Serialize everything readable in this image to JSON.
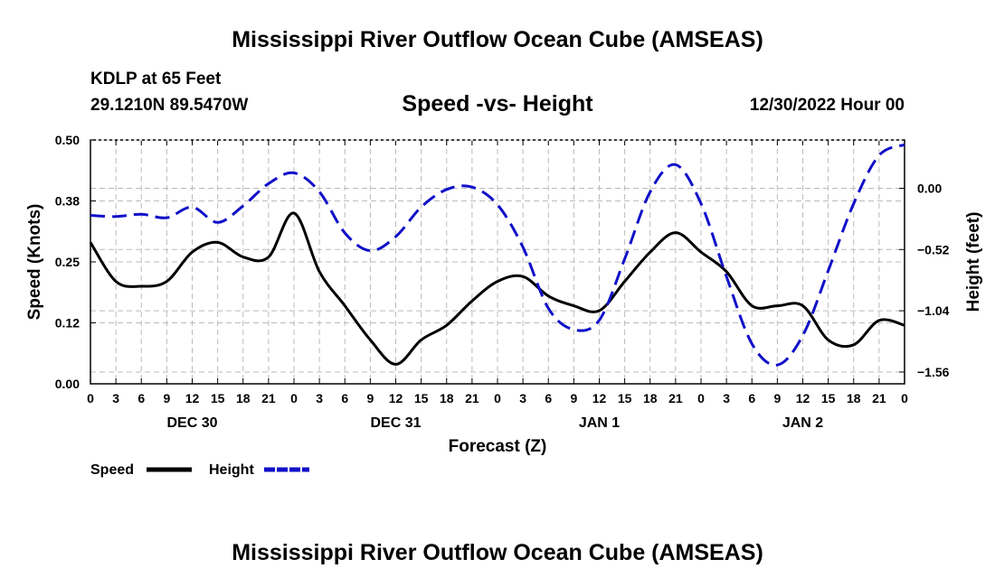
{
  "header": {
    "title": "Mississippi River Outflow Ocean Cube (AMSEAS)",
    "station": "KDLP at 65 Feet",
    "coordinates": "29.1210N  89.5470W",
    "subtitle": "Speed -vs- Height",
    "run_time": "12/30/2022 Hour 00"
  },
  "footer": {
    "title": "Mississippi River Outflow Ocean Cube (AMSEAS)"
  },
  "chart_data": {
    "type": "line",
    "title": "Speed -vs- Height",
    "xlabel": "Forecast (Z)",
    "ylabel": "Speed (Knots)",
    "y2label": "Height (feet)",
    "x_hours_range": [
      0,
      96
    ],
    "x_tick_labels": [
      "0",
      "3",
      "6",
      "9",
      "12",
      "15",
      "18",
      "21",
      "0",
      "3",
      "6",
      "9",
      "12",
      "15",
      "18",
      "21",
      "0",
      "3",
      "6",
      "9",
      "12",
      "15",
      "18",
      "21",
      "0",
      "3",
      "6",
      "9",
      "12",
      "15",
      "18",
      "21",
      "0"
    ],
    "day_labels": [
      {
        "label": "DEC 30",
        "hour": 12
      },
      {
        "label": "DEC 31",
        "hour": 36
      },
      {
        "label": "JAN 1",
        "hour": 60
      },
      {
        "label": "JAN 2",
        "hour": 84
      }
    ],
    "ylim": [
      0,
      0.5
    ],
    "y_ticks": [
      "0.00",
      "0.12",
      "0.25",
      "0.38",
      "0.50"
    ],
    "y2lim": [
      -1.66,
      0.41
    ],
    "y2_ticks": [
      "0.00",
      "−0.52",
      "−1.04",
      "−1.56"
    ],
    "y2_tick_values": [
      0.0,
      -0.52,
      -1.04,
      -1.56
    ],
    "grid": true,
    "legend_position": "bottom-left",
    "series": [
      {
        "name": "Speed",
        "axis": "left",
        "color": "#000000",
        "dash": "solid",
        "x": [
          0,
          3,
          6,
          9,
          12,
          15,
          18,
          21,
          24,
          27,
          30,
          33,
          36,
          39,
          42,
          45,
          48,
          51,
          54,
          57,
          60,
          63,
          66,
          69,
          72,
          75,
          78,
          81,
          84,
          87,
          90,
          93,
          96
        ],
        "y": [
          0.29,
          0.21,
          0.2,
          0.21,
          0.27,
          0.29,
          0.26,
          0.26,
          0.35,
          0.23,
          0.16,
          0.09,
          0.04,
          0.09,
          0.12,
          0.17,
          0.21,
          0.22,
          0.18,
          0.16,
          0.15,
          0.21,
          0.27,
          0.31,
          0.27,
          0.23,
          0.16,
          0.16,
          0.16,
          0.09,
          0.08,
          0.13,
          0.12
        ]
      },
      {
        "name": "Height",
        "axis": "right",
        "color": "#1010c8",
        "dash": "dashed",
        "x": [
          0,
          3,
          6,
          9,
          12,
          15,
          18,
          21,
          24,
          27,
          30,
          33,
          36,
          39,
          42,
          45,
          48,
          51,
          54,
          57,
          60,
          63,
          66,
          69,
          72,
          75,
          78,
          81,
          84,
          87,
          90,
          93,
          96
        ],
        "y": [
          -0.23,
          -0.24,
          -0.22,
          -0.25,
          -0.16,
          -0.29,
          -0.15,
          0.04,
          0.13,
          -0.03,
          -0.38,
          -0.53,
          -0.41,
          -0.16,
          -0.01,
          0.01,
          -0.14,
          -0.5,
          -1.02,
          -1.2,
          -1.12,
          -0.6,
          -0.03,
          0.2,
          -0.13,
          -0.75,
          -1.32,
          -1.5,
          -1.25,
          -0.7,
          -0.13,
          0.28,
          0.37
        ]
      }
    ]
  }
}
